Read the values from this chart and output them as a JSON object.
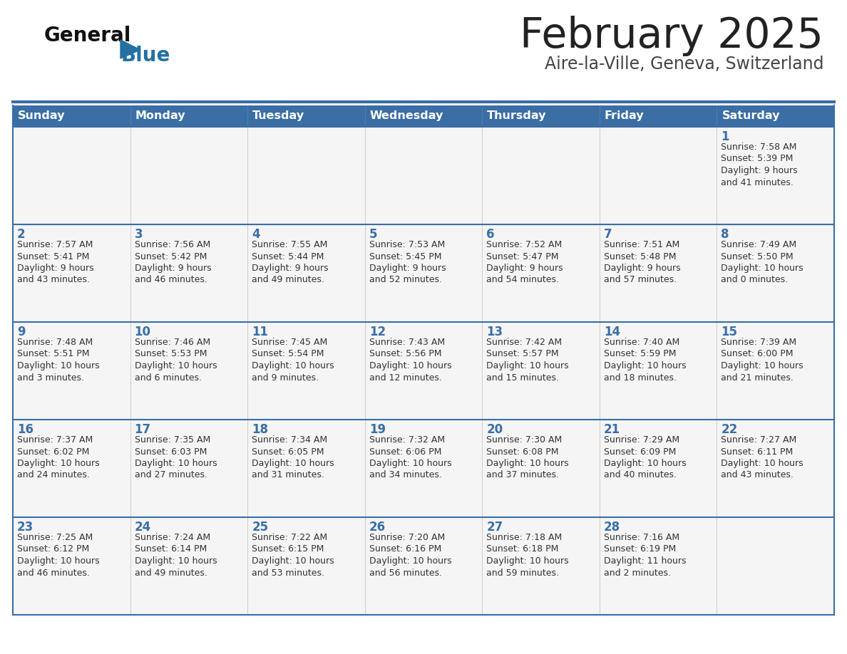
{
  "title": "February 2025",
  "subtitle": "Aire-la-Ville, Geneva, Switzerland",
  "header_bg": "#3a6ea5",
  "header_text": "#ffffff",
  "row_bg": "#f5f5f5",
  "cell_border_color": "#3a6ea5",
  "cell_vert_border": "#cccccc",
  "day_headers": [
    "Sunday",
    "Monday",
    "Tuesday",
    "Wednesday",
    "Thursday",
    "Friday",
    "Saturday"
  ],
  "title_color": "#222222",
  "subtitle_color": "#444444",
  "day_number_color": "#3a6ea5",
  "cell_text_color": "#333333",
  "logo_general_color": "#111111",
  "logo_blue_color": "#2471a3",
  "logo_triangle_color": "#2471a3",
  "calendar": [
    [
      null,
      null,
      null,
      null,
      null,
      null,
      {
        "day": 1,
        "sunrise": "7:58 AM",
        "sunset": "5:39 PM",
        "daylight": "9 hours and 41 minutes."
      }
    ],
    [
      {
        "day": 2,
        "sunrise": "7:57 AM",
        "sunset": "5:41 PM",
        "daylight": "9 hours and 43 minutes."
      },
      {
        "day": 3,
        "sunrise": "7:56 AM",
        "sunset": "5:42 PM",
        "daylight": "9 hours and 46 minutes."
      },
      {
        "day": 4,
        "sunrise": "7:55 AM",
        "sunset": "5:44 PM",
        "daylight": "9 hours and 49 minutes."
      },
      {
        "day": 5,
        "sunrise": "7:53 AM",
        "sunset": "5:45 PM",
        "daylight": "9 hours and 52 minutes."
      },
      {
        "day": 6,
        "sunrise": "7:52 AM",
        "sunset": "5:47 PM",
        "daylight": "9 hours and 54 minutes."
      },
      {
        "day": 7,
        "sunrise": "7:51 AM",
        "sunset": "5:48 PM",
        "daylight": "9 hours and 57 minutes."
      },
      {
        "day": 8,
        "sunrise": "7:49 AM",
        "sunset": "5:50 PM",
        "daylight": "10 hours and 0 minutes."
      }
    ],
    [
      {
        "day": 9,
        "sunrise": "7:48 AM",
        "sunset": "5:51 PM",
        "daylight": "10 hours and 3 minutes."
      },
      {
        "day": 10,
        "sunrise": "7:46 AM",
        "sunset": "5:53 PM",
        "daylight": "10 hours and 6 minutes."
      },
      {
        "day": 11,
        "sunrise": "7:45 AM",
        "sunset": "5:54 PM",
        "daylight": "10 hours and 9 minutes."
      },
      {
        "day": 12,
        "sunrise": "7:43 AM",
        "sunset": "5:56 PM",
        "daylight": "10 hours and 12 minutes."
      },
      {
        "day": 13,
        "sunrise": "7:42 AM",
        "sunset": "5:57 PM",
        "daylight": "10 hours and 15 minutes."
      },
      {
        "day": 14,
        "sunrise": "7:40 AM",
        "sunset": "5:59 PM",
        "daylight": "10 hours and 18 minutes."
      },
      {
        "day": 15,
        "sunrise": "7:39 AM",
        "sunset": "6:00 PM",
        "daylight": "10 hours and 21 minutes."
      }
    ],
    [
      {
        "day": 16,
        "sunrise": "7:37 AM",
        "sunset": "6:02 PM",
        "daylight": "10 hours and 24 minutes."
      },
      {
        "day": 17,
        "sunrise": "7:35 AM",
        "sunset": "6:03 PM",
        "daylight": "10 hours and 27 minutes."
      },
      {
        "day": 18,
        "sunrise": "7:34 AM",
        "sunset": "6:05 PM",
        "daylight": "10 hours and 31 minutes."
      },
      {
        "day": 19,
        "sunrise": "7:32 AM",
        "sunset": "6:06 PM",
        "daylight": "10 hours and 34 minutes."
      },
      {
        "day": 20,
        "sunrise": "7:30 AM",
        "sunset": "6:08 PM",
        "daylight": "10 hours and 37 minutes."
      },
      {
        "day": 21,
        "sunrise": "7:29 AM",
        "sunset": "6:09 PM",
        "daylight": "10 hours and 40 minutes."
      },
      {
        "day": 22,
        "sunrise": "7:27 AM",
        "sunset": "6:11 PM",
        "daylight": "10 hours and 43 minutes."
      }
    ],
    [
      {
        "day": 23,
        "sunrise": "7:25 AM",
        "sunset": "6:12 PM",
        "daylight": "10 hours and 46 minutes."
      },
      {
        "day": 24,
        "sunrise": "7:24 AM",
        "sunset": "6:14 PM",
        "daylight": "10 hours and 49 minutes."
      },
      {
        "day": 25,
        "sunrise": "7:22 AM",
        "sunset": "6:15 PM",
        "daylight": "10 hours and 53 minutes."
      },
      {
        "day": 26,
        "sunrise": "7:20 AM",
        "sunset": "6:16 PM",
        "daylight": "10 hours and 56 minutes."
      },
      {
        "day": 27,
        "sunrise": "7:18 AM",
        "sunset": "6:18 PM",
        "daylight": "10 hours and 59 minutes."
      },
      {
        "day": 28,
        "sunrise": "7:16 AM",
        "sunset": "6:19 PM",
        "daylight": "11 hours and 2 minutes."
      },
      null
    ]
  ]
}
